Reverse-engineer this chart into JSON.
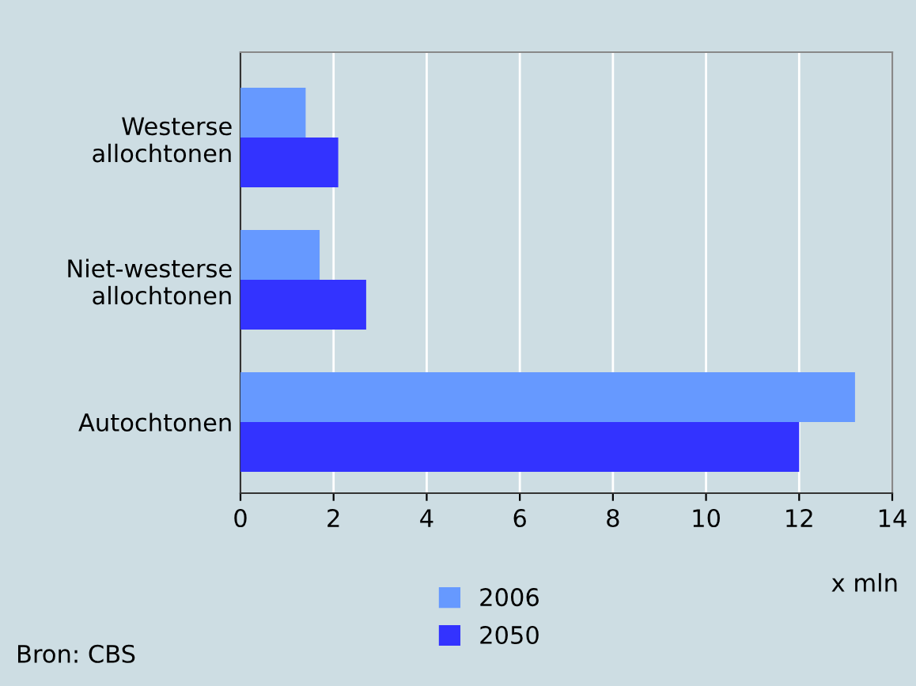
{
  "chart_data": {
    "type": "bar",
    "orientation": "horizontal",
    "categories": [
      "Westerse\nallochtonen",
      "Niet-westerse\nallochtonen",
      "Autochtonen"
    ],
    "series": [
      {
        "name": "2006",
        "color": "#6699ff",
        "values": [
          1.4,
          1.7,
          13.2
        ]
      },
      {
        "name": "2050",
        "color": "#3333ff",
        "values": [
          2.1,
          2.7,
          12.0
        ]
      }
    ],
    "xlim": [
      0,
      14
    ],
    "xticks": [
      0,
      2,
      4,
      6,
      8,
      10,
      12,
      14
    ],
    "xlabel": "x mln",
    "grid": "x",
    "legend": "bottom",
    "annotations": [
      "Bron: CBS"
    ]
  }
}
